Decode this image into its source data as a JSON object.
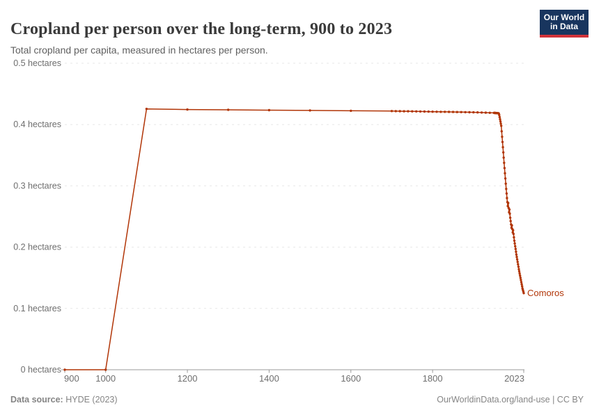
{
  "header": {
    "title": "Cropland per person over the long-term, 900 to 2023",
    "subtitle": "Total cropland per capita, measured in hectares per person."
  },
  "logo": {
    "line1": "Our World",
    "line2": "in Data"
  },
  "footer": {
    "source_label": "Data source:",
    "source_value": " HYDE (2023)",
    "credit": "OurWorldinData.org/land-use | CC BY"
  },
  "colors": {
    "line": "#B13507",
    "grid": "#e7e7e7",
    "axis": "#999999",
    "title_text": "#3a3a3a",
    "subtitle_text": "#5f5f5f",
    "axis_text": "#6e6e6e",
    "footer_text": "#858585",
    "logo_bg": "#18355E",
    "logo_bar": "#D13239"
  },
  "chart_data": {
    "type": "line",
    "title": "Cropland per person over the long-term, 900 to 2023",
    "subtitle": "Total cropland per capita, measured in hectares per person.",
    "xlabel": "",
    "ylabel": "hectares per person",
    "xlim": [
      900,
      2023
    ],
    "ylim": [
      0,
      0.5
    ],
    "grid": "horizontal-dashed",
    "legend_position": "end-of-line-label",
    "x_ticks": [
      900,
      1000,
      1200,
      1400,
      1600,
      1800,
      2023
    ],
    "y_ticks": [
      {
        "value": 0,
        "label": "0 hectares"
      },
      {
        "value": 0.1,
        "label": "0.1 hectares"
      },
      {
        "value": 0.2,
        "label": "0.2 hectares"
      },
      {
        "value": 0.3,
        "label": "0.3 hectares"
      },
      {
        "value": 0.4,
        "label": "0.4 hectares"
      },
      {
        "value": 0.5,
        "label": "0.5 hectares"
      }
    ],
    "series": [
      {
        "name": "Comoros",
        "color": "#B13507",
        "points": [
          [
            900,
            0
          ],
          [
            1000,
            0
          ],
          [
            1100,
            0.4255
          ],
          [
            1200,
            0.4245
          ],
          [
            1300,
            0.424
          ],
          [
            1400,
            0.4235
          ],
          [
            1500,
            0.423
          ],
          [
            1600,
            0.4225
          ],
          [
            1700,
            0.422
          ],
          [
            1710,
            0.4219
          ],
          [
            1720,
            0.4218
          ],
          [
            1730,
            0.4217
          ],
          [
            1740,
            0.4216
          ],
          [
            1750,
            0.4215
          ],
          [
            1760,
            0.4214
          ],
          [
            1770,
            0.4213
          ],
          [
            1780,
            0.4212
          ],
          [
            1790,
            0.4211
          ],
          [
            1800,
            0.421
          ],
          [
            1810,
            0.4209
          ],
          [
            1820,
            0.4208
          ],
          [
            1830,
            0.4207
          ],
          [
            1840,
            0.4206
          ],
          [
            1850,
            0.4205
          ],
          [
            1860,
            0.4204
          ],
          [
            1870,
            0.4203
          ],
          [
            1880,
            0.4202
          ],
          [
            1890,
            0.4201
          ],
          [
            1900,
            0.42
          ],
          [
            1910,
            0.4198
          ],
          [
            1920,
            0.4196
          ],
          [
            1930,
            0.4194
          ],
          [
            1940,
            0.4192
          ],
          [
            1950,
            0.419
          ],
          [
            1951,
            0.419
          ],
          [
            1952,
            0.4189
          ],
          [
            1953,
            0.4189
          ],
          [
            1954,
            0.4188
          ],
          [
            1955,
            0.4188
          ],
          [
            1956,
            0.4187
          ],
          [
            1957,
            0.4187
          ],
          [
            1958,
            0.4186
          ],
          [
            1959,
            0.4186
          ],
          [
            1960,
            0.4185
          ],
          [
            1961,
            0.4185
          ],
          [
            1962,
            0.418
          ],
          [
            1963,
            0.4155
          ],
          [
            1964,
            0.412
          ],
          [
            1965,
            0.4085
          ],
          [
            1966,
            0.405
          ],
          [
            1967,
            0.4015
          ],
          [
            1968,
            0.398
          ],
          [
            1969,
            0.389
          ],
          [
            1970,
            0.38
          ],
          [
            1971,
            0.3715
          ],
          [
            1972,
            0.363
          ],
          [
            1973,
            0.3545
          ],
          [
            1974,
            0.346
          ],
          [
            1975,
            0.3375
          ],
          [
            1976,
            0.329
          ],
          [
            1977,
            0.3205
          ],
          [
            1978,
            0.312
          ],
          [
            1979,
            0.3035
          ],
          [
            1980,
            0.295
          ],
          [
            1981,
            0.2875
          ],
          [
            1982,
            0.28
          ],
          [
            1983,
            0.2735
          ],
          [
            1984,
            0.267
          ],
          [
            1985,
            0.272
          ],
          [
            1986,
            0.264
          ],
          [
            1987,
            0.257
          ],
          [
            1988,
            0.2615
          ],
          [
            1989,
            0.2545
          ],
          [
            1990,
            0.248
          ],
          [
            1991,
            0.2425
          ],
          [
            1992,
            0.237
          ],
          [
            1993,
            0.2315
          ],
          [
            1994,
            0.2355
          ],
          [
            1995,
            0.2295
          ],
          [
            1996,
            0.224
          ],
          [
            1997,
            0.2275
          ],
          [
            1998,
            0.2215
          ],
          [
            1999,
            0.216
          ],
          [
            2000,
            0.2105
          ],
          [
            2001,
            0.206
          ],
          [
            2002,
            0.2015
          ],
          [
            2003,
            0.197
          ],
          [
            2004,
            0.1925
          ],
          [
            2005,
            0.188
          ],
          [
            2006,
            0.184
          ],
          [
            2007,
            0.18
          ],
          [
            2008,
            0.176
          ],
          [
            2009,
            0.172
          ],
          [
            2010,
            0.168
          ],
          [
            2011,
            0.164
          ],
          [
            2012,
            0.1605
          ],
          [
            2013,
            0.157
          ],
          [
            2014,
            0.1535
          ],
          [
            2015,
            0.15
          ],
          [
            2016,
            0.1465
          ],
          [
            2017,
            0.143
          ],
          [
            2018,
            0.1395
          ],
          [
            2019,
            0.136
          ],
          [
            2020,
            0.1325
          ],
          [
            2021,
            0.13
          ],
          [
            2022,
            0.1275
          ],
          [
            2023,
            0.125
          ]
        ]
      }
    ]
  }
}
